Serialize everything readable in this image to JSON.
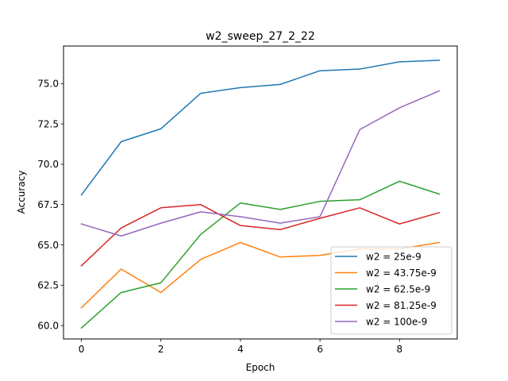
{
  "chart_data": {
    "type": "line",
    "title": "w2_sweep_27_2_22",
    "xlabel": "Epoch",
    "ylabel": "Accuracy",
    "xlim": [
      -0.45,
      9.45
    ],
    "ylim": [
      59.17,
      77.33
    ],
    "xticks": [
      0,
      2,
      4,
      6,
      8
    ],
    "xtick_labels": [
      "0",
      "2",
      "4",
      "6",
      "8"
    ],
    "yticks": [
      60.0,
      62.5,
      65.0,
      67.5,
      70.0,
      72.5,
      75.0
    ],
    "ytick_labels": [
      "60.0",
      "62.5",
      "65.0",
      "67.5",
      "70.0",
      "72.5",
      "75.0"
    ],
    "grid": false,
    "legend_position": "lower-right",
    "x": [
      0,
      1,
      2,
      3,
      4,
      5,
      6,
      7,
      8,
      9
    ],
    "series": [
      {
        "name": "w2 = 25e-9",
        "color": "#1f77b4",
        "values": [
          68.1,
          71.4,
          72.2,
          74.4,
          74.75,
          74.95,
          75.8,
          75.9,
          76.35,
          76.45
        ]
      },
      {
        "name": "w2 = 43.75e-9",
        "color": "#ff7f0e",
        "values": [
          61.1,
          63.5,
          62.05,
          64.1,
          65.15,
          64.25,
          64.35,
          64.75,
          64.75,
          65.15
        ]
      },
      {
        "name": "w2 = 62.5e-9",
        "color": "#2ca02c",
        "values": [
          59.85,
          62.05,
          62.65,
          65.65,
          67.6,
          67.2,
          67.7,
          67.8,
          68.95,
          68.15
        ]
      },
      {
        "name": "w2 = 81.25e-9",
        "color": "#d62728",
        "values": [
          63.7,
          66.05,
          67.3,
          67.5,
          66.2,
          65.95,
          66.65,
          67.3,
          66.3,
          67.0
        ]
      },
      {
        "name": "w2 = 100e-9",
        "color": "#9467bd",
        "values": [
          66.3,
          65.55,
          66.35,
          67.05,
          66.75,
          66.35,
          66.75,
          72.15,
          73.5,
          74.55
        ]
      }
    ]
  }
}
